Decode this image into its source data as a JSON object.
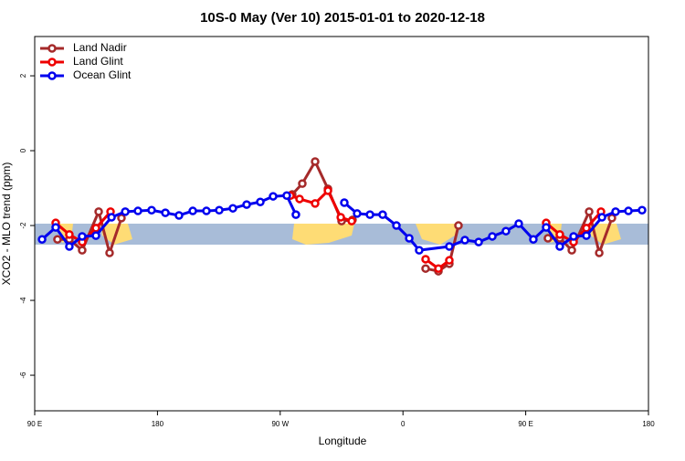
{
  "chart_data": {
    "type": "line",
    "title": "10S-0 May (Ver 10)   2015-01-01 to 2020-12-18",
    "x_label": "Longitude",
    "y_label": "XCO2 - MLO trend (ppm)",
    "xlim": [
      90,
      540
    ],
    "ylim": [
      -6.95,
      3.05
    ],
    "xticks": [
      {
        "value": 90,
        "label": "90 E"
      },
      180,
      {
        "value": 270,
        "label": "90 W"
      },
      {
        "value": 360,
        "label": "0"
      },
      {
        "value": 450,
        "label": "90 E"
      },
      {
        "value": 540,
        "label": "180"
      }
    ],
    "yticks": [
      -6,
      -4,
      -2,
      0,
      2
    ],
    "legend": "top-left",
    "series": [
      {
        "name": "Land Nadir",
        "color": "#a52a2a",
        "x": [
          106.7,
          115.4,
          124.8,
          136.9,
          144.9,
          153.6,
          null,
          278.8,
          286.2,
          295.6,
          305,
          315,
          323,
          null,
          376.6,
          386,
          394,
          400.7,
          null,
          466.3,
          475,
          483.8,
          496.5,
          503.9,
          513.2
        ],
        "values": [
          -2.37,
          -2.37,
          -2.66,
          -1.63,
          -2.73,
          -1.8,
          null,
          -1.17,
          -0.88,
          -0.29,
          -1.02,
          -1.88,
          -1.85,
          null,
          -3.15,
          -3.22,
          -3.02,
          -2.0,
          null,
          -2.34,
          -2.34,
          -2.66,
          -1.63,
          -2.73,
          -1.8
        ]
      },
      {
        "name": "Land Glint",
        "color": "#ee0000",
        "x": [
          105.4,
          115.4,
          124.8,
          134.9,
          145.6,
          null,
          277.5,
          284.2,
          295.6,
          305,
          314.4,
          322.4,
          null,
          376.6,
          386,
          394,
          null,
          465,
          475,
          485.1,
          494.5,
          505.2
        ],
        "values": [
          -1.93,
          -2.24,
          -2.44,
          -2.07,
          -1.63,
          null,
          -1.2,
          -1.29,
          -1.41,
          -1.07,
          -1.78,
          -1.88,
          null,
          -2.9,
          -3.15,
          -2.93,
          null,
          -1.93,
          -2.24,
          -2.44,
          -2.07,
          -1.63
        ]
      },
      {
        "name": "Ocean Glint",
        "color": "#0000ee",
        "x": [
          95.4,
          105.4,
          115.4,
          124.8,
          134.9,
          146.3,
          156.4,
          165.7,
          175.7,
          185.8,
          195.8,
          205.9,
          215.9,
          225.3,
          235.3,
          245.4,
          255.4,
          264.8,
          274.8,
          281.5,
          null,
          317,
          326.4,
          335.8,
          345.1,
          355.2,
          364.6,
          371.9,
          394,
          405.4,
          415.5,
          425.5,
          435.5,
          444.9,
          455.6,
          465,
          475,
          485.1,
          494.5,
          505.9,
          515.9,
          525.3,
          535.3
        ],
        "values": [
          -2.37,
          -2.05,
          -2.56,
          -2.29,
          -2.27,
          -1.78,
          -1.63,
          -1.61,
          -1.59,
          -1.66,
          -1.73,
          -1.61,
          -1.61,
          -1.59,
          -1.54,
          -1.44,
          -1.37,
          -1.22,
          -1.2,
          -1.71,
          null,
          -1.39,
          -1.68,
          -1.71,
          -1.71,
          -2.0,
          -2.34,
          -2.66,
          -2.56,
          -2.39,
          -2.44,
          -2.29,
          -2.15,
          -1.95,
          -2.37,
          -2.05,
          -2.56,
          -2.29,
          -2.27,
          -1.78,
          -1.63,
          -1.61,
          -1.59
        ]
      }
    ]
  }
}
